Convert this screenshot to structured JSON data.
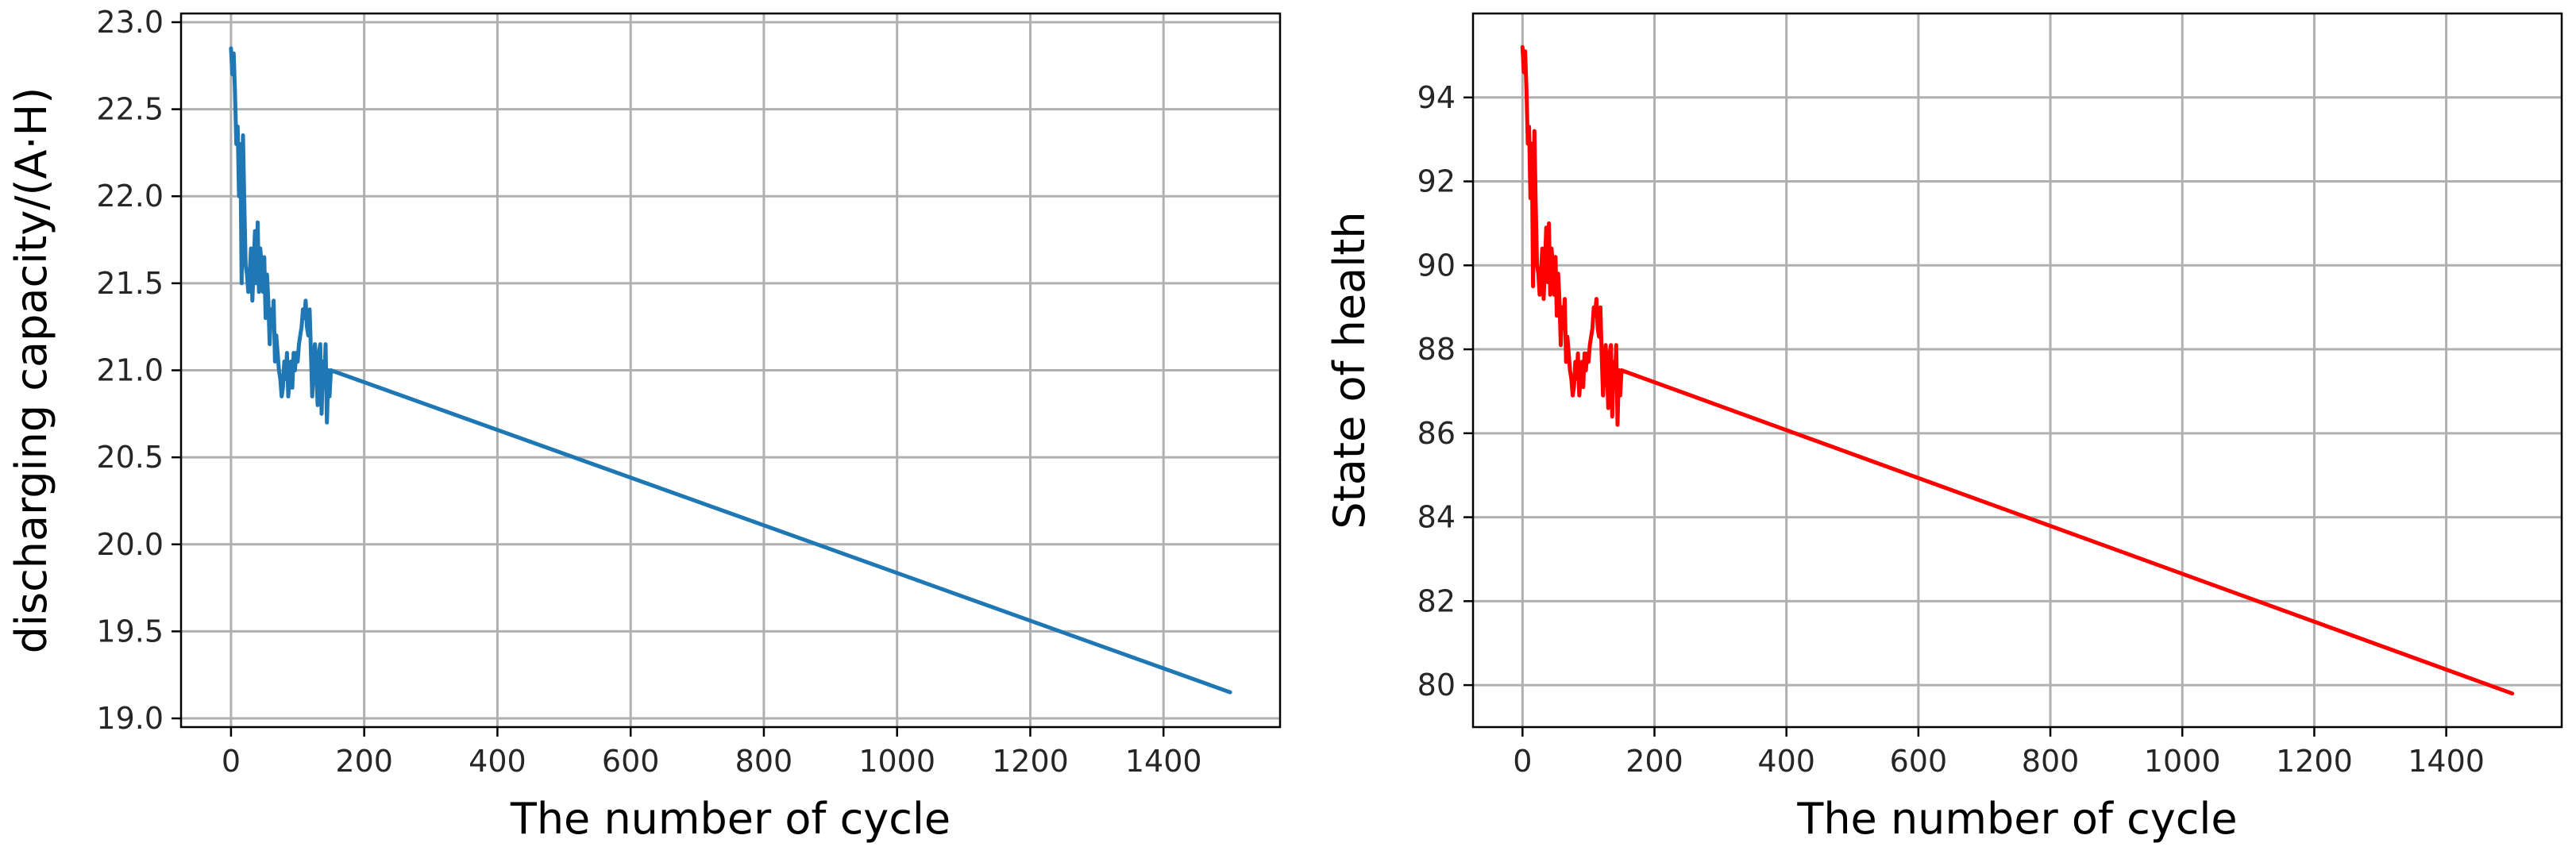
{
  "chart_data": [
    {
      "type": "line",
      "xlabel": "The number of cycle",
      "ylabel": "discharging capacity/(A·H)",
      "xlim": [
        -75,
        1575
      ],
      "ylim": [
        18.95,
        23.05
      ],
      "xticks": [
        0,
        200,
        400,
        600,
        800,
        1000,
        1200,
        1400
      ],
      "yticks": [
        19.0,
        19.5,
        20.0,
        20.5,
        21.0,
        21.5,
        22.0,
        22.5,
        23.0
      ],
      "ytick_labels": [
        "19.0",
        "19.5",
        "20.0",
        "20.5",
        "21.0",
        "21.5",
        "22.0",
        "22.5",
        "23.0"
      ],
      "grid": true,
      "series": [
        {
          "color": "#1f77b4",
          "x": [
            0,
            2,
            4,
            6,
            8,
            10,
            12,
            14,
            16,
            18,
            20,
            22,
            24,
            26,
            28,
            30,
            32,
            34,
            36,
            38,
            40,
            42,
            44,
            46,
            48,
            50,
            52,
            54,
            56,
            58,
            60,
            62,
            64,
            66,
            68,
            70,
            72,
            74,
            76,
            78,
            80,
            82,
            84,
            86,
            88,
            90,
            92,
            94,
            96,
            98,
            100,
            102,
            104,
            106,
            108,
            110,
            112,
            114,
            116,
            118,
            120,
            122,
            124,
            126,
            128,
            130,
            132,
            134,
            136,
            138,
            140,
            142,
            144,
            146,
            148,
            150,
            1500
          ],
          "y": [
            22.85,
            22.7,
            22.82,
            22.6,
            22.3,
            22.4,
            22.0,
            22.3,
            21.5,
            22.35,
            21.95,
            21.6,
            21.55,
            21.45,
            21.55,
            21.7,
            21.4,
            21.6,
            21.8,
            21.5,
            21.85,
            21.45,
            21.7,
            21.6,
            21.45,
            21.65,
            21.3,
            21.55,
            21.4,
            21.15,
            21.35,
            21.25,
            21.4,
            21.05,
            21.2,
            21.1,
            21.0,
            20.95,
            20.85,
            20.9,
            21.05,
            20.95,
            21.1,
            20.85,
            20.95,
            21.05,
            20.9,
            21.1,
            21.0,
            21.1,
            21.05,
            21.15,
            21.2,
            21.25,
            21.35,
            21.3,
            21.4,
            21.25,
            21.2,
            21.35,
            21.1,
            20.85,
            21.0,
            21.15,
            21.0,
            20.8,
            21.1,
            21.15,
            20.75,
            21.05,
            20.9,
            21.15,
            20.7,
            21.0,
            20.85,
            21.0,
            19.15
          ]
        }
      ]
    },
    {
      "type": "line",
      "xlabel": "The number of cycle",
      "ylabel": "State of health",
      "xlim": [
        -75,
        1575
      ],
      "ylim": [
        79,
        96
      ],
      "xticks": [
        0,
        200,
        400,
        600,
        800,
        1000,
        1200,
        1400
      ],
      "yticks": [
        80,
        82,
        84,
        86,
        88,
        90,
        92,
        94
      ],
      "ytick_labels": [
        "80",
        "82",
        "84",
        "86",
        "88",
        "90",
        "92",
        "94"
      ],
      "grid": true,
      "series": [
        {
          "color": "#ff0000",
          "x": [
            0,
            2,
            4,
            6,
            8,
            10,
            12,
            14,
            16,
            18,
            20,
            22,
            24,
            26,
            28,
            30,
            32,
            34,
            36,
            38,
            40,
            42,
            44,
            46,
            48,
            50,
            52,
            54,
            56,
            58,
            60,
            62,
            64,
            66,
            68,
            70,
            72,
            74,
            76,
            78,
            80,
            82,
            84,
            86,
            88,
            90,
            92,
            94,
            96,
            98,
            100,
            102,
            104,
            106,
            108,
            110,
            112,
            114,
            116,
            118,
            120,
            122,
            124,
            126,
            128,
            130,
            132,
            134,
            136,
            138,
            140,
            142,
            144,
            146,
            148,
            150,
            1500
          ],
          "y": [
            95.2,
            94.6,
            95.1,
            94.2,
            92.9,
            93.3,
            91.6,
            92.9,
            89.5,
            93.2,
            91.5,
            90.0,
            89.8,
            89.3,
            89.8,
            90.4,
            89.2,
            90.0,
            90.9,
            89.6,
            91.0,
            89.3,
            90.4,
            90.0,
            89.3,
            90.2,
            88.8,
            89.8,
            89.2,
            88.1,
            89.0,
            88.5,
            89.2,
            87.7,
            88.3,
            87.9,
            87.5,
            87.3,
            86.9,
            87.1,
            87.7,
            87.3,
            87.9,
            86.9,
            87.3,
            87.7,
            87.1,
            87.9,
            87.5,
            87.9,
            87.7,
            88.1,
            88.3,
            88.5,
            89.0,
            88.8,
            89.2,
            88.5,
            88.3,
            89.0,
            87.9,
            86.9,
            87.5,
            88.1,
            87.5,
            86.6,
            87.9,
            88.1,
            86.4,
            87.7,
            87.1,
            88.1,
            86.2,
            87.5,
            86.9,
            87.5,
            79.8
          ]
        }
      ]
    }
  ]
}
